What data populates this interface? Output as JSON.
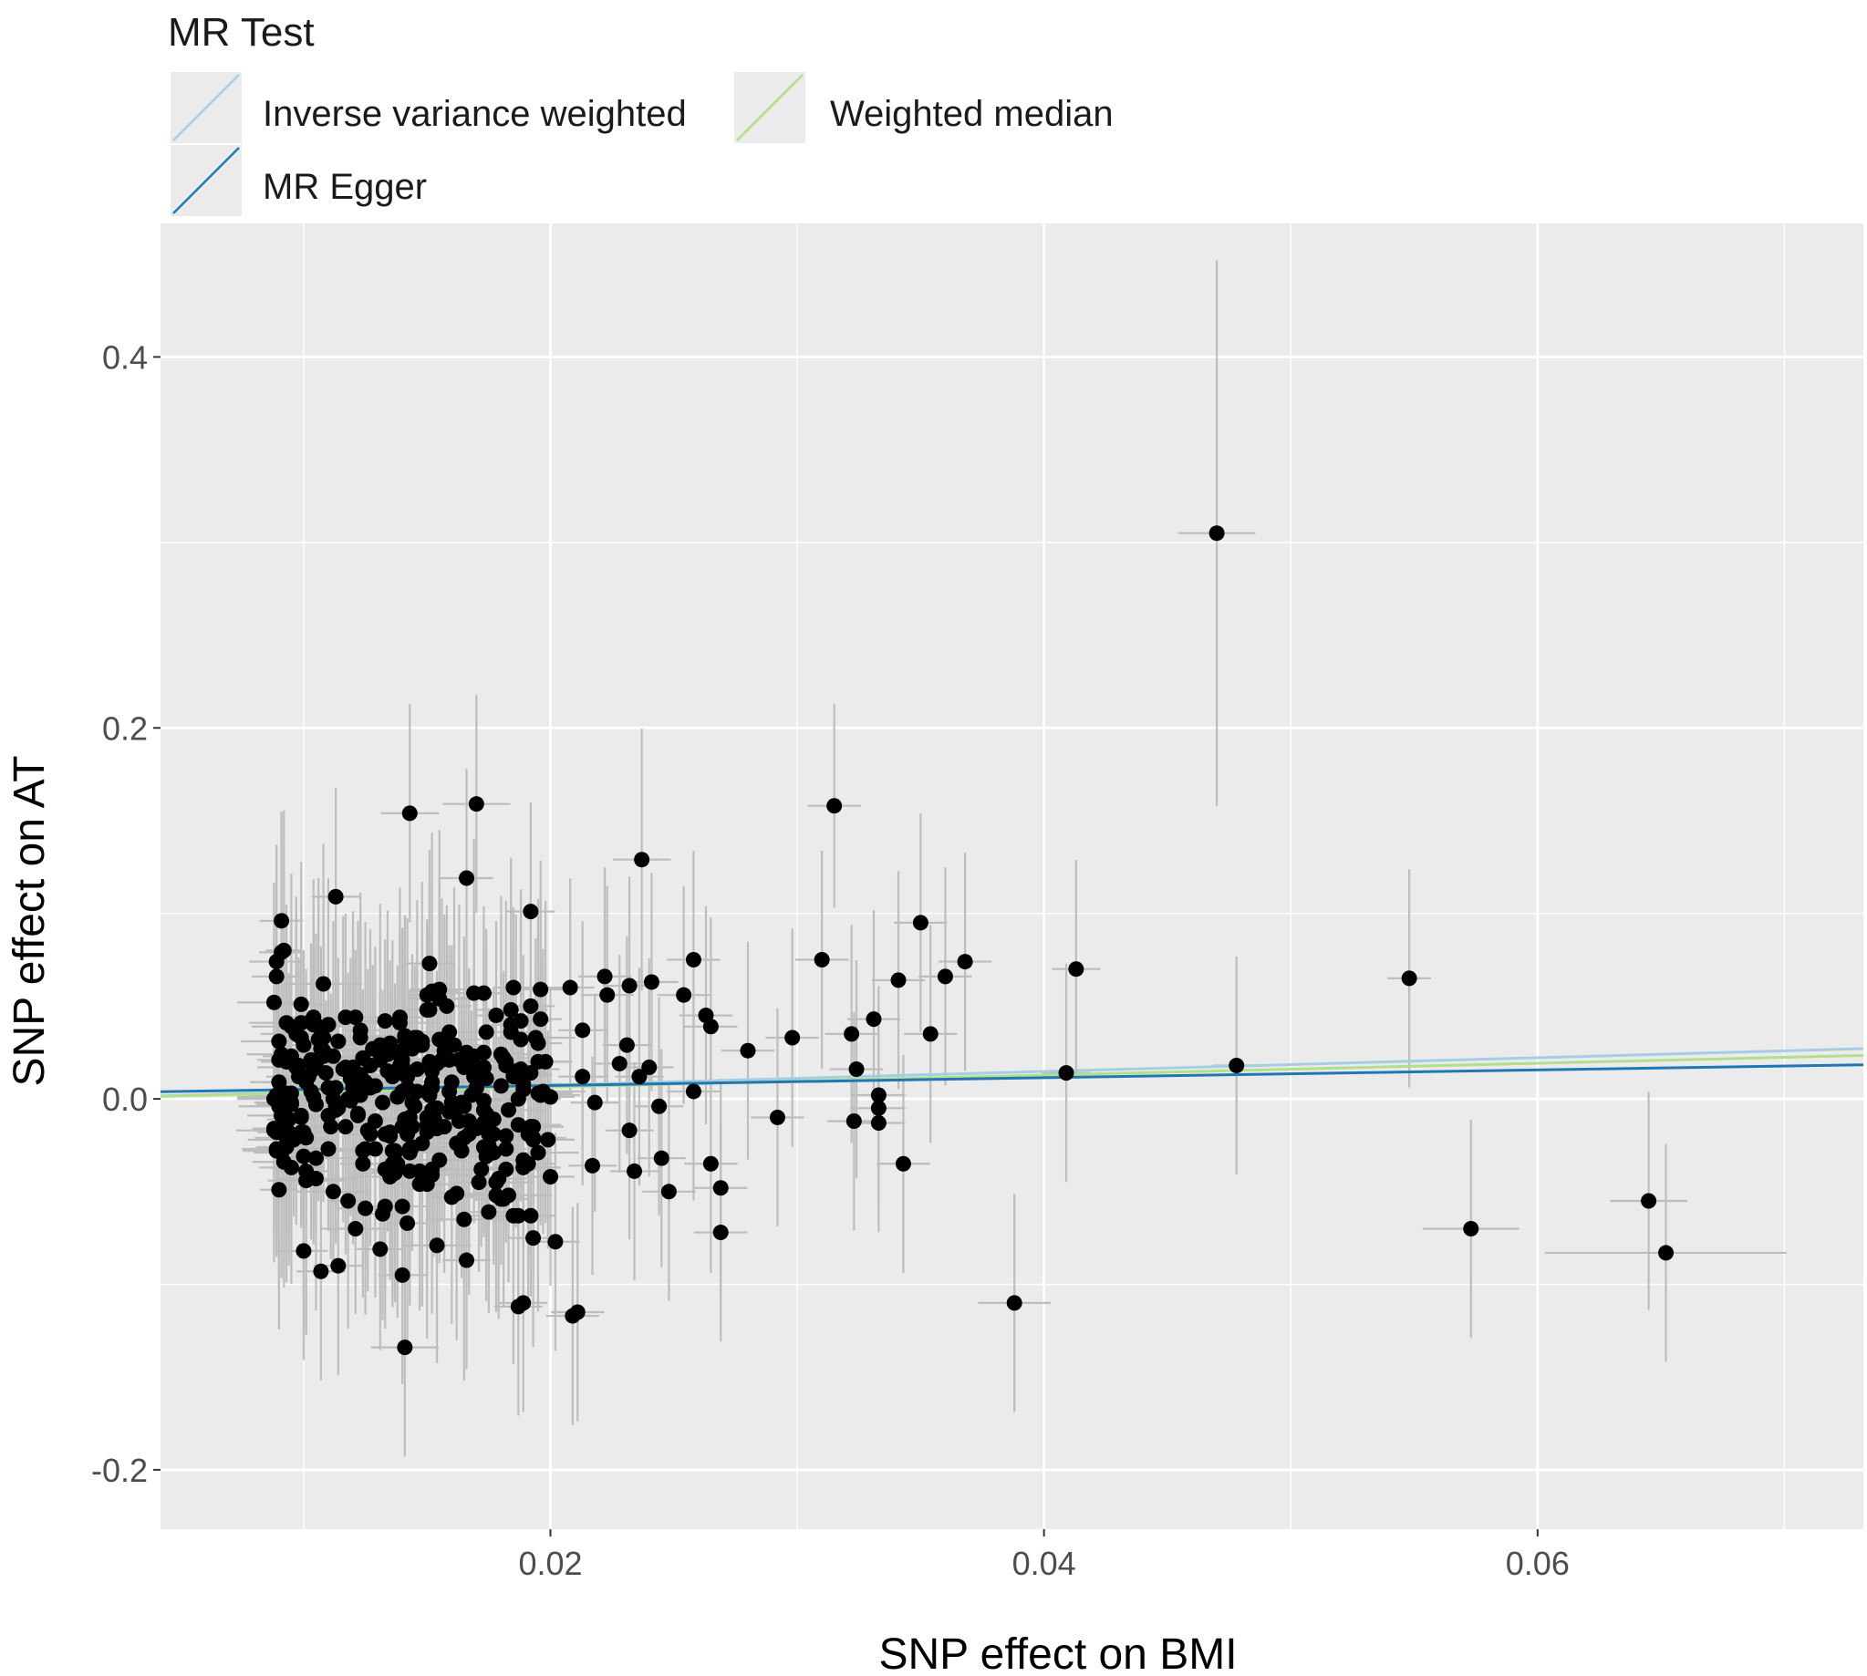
{
  "chart_data": {
    "type": "scatter",
    "legend": {
      "title": "MR Test",
      "placement": "top",
      "items": [
        {
          "label": "Inverse variance weighted",
          "color": "#a6cee3"
        },
        {
          "label": "Weighted median",
          "color": "#b2df8a"
        },
        {
          "label": "MR Egger",
          "color": "#1f78b4"
        }
      ]
    },
    "xlabel": "SNP effect on BMI",
    "ylabel": "SNP effect on AT",
    "xlim": [
      0.0042,
      0.0732
    ],
    "ylim": [
      -0.232,
      0.472
    ],
    "x_ticks": [
      0.02,
      0.04,
      0.06
    ],
    "x_tick_labels": [
      "0.02",
      "0.04",
      "0.06"
    ],
    "y_ticks": [
      0.4,
      0.2,
      0.0,
      -0.2
    ],
    "y_tick_labels": [
      "0.4",
      "0.2",
      "0.0",
      "-0.2"
    ],
    "grid": true,
    "panel_color": "#ebebeb",
    "point_color": "#000000",
    "errorbar_color": "#bdbdbd",
    "lines": [
      {
        "name": "Inverse variance weighted",
        "slope": 0.37,
        "intercept": 0
      },
      {
        "name": "Weighted median",
        "slope": 0.32,
        "intercept": 0
      },
      {
        "name": "MR Egger",
        "slope": 0.21,
        "intercept": 0.003
      }
    ],
    "points": [
      {
        "x": 0.047,
        "y": 0.305,
        "xse": 0.0016,
        "yse": 0.075
      },
      {
        "x": 0.0315,
        "y": 0.158,
        "xse": 0.0011,
        "yse": 0.028
      },
      {
        "x": 0.017,
        "y": 0.159,
        "xse": 0.0014,
        "yse": 0.03
      },
      {
        "x": 0.0143,
        "y": 0.154,
        "xse": 0.0012,
        "yse": 0.03
      },
      {
        "x": 0.0237,
        "y": 0.129,
        "xse": 0.0012,
        "yse": 0.036
      },
      {
        "x": 0.0166,
        "y": 0.119,
        "xse": 0.0011,
        "yse": 0.03
      },
      {
        "x": 0.0113,
        "y": 0.109,
        "xse": 0.001,
        "yse": 0.03
      },
      {
        "x": 0.035,
        "y": 0.095,
        "xse": 0.0011,
        "yse": 0.03
      },
      {
        "x": 0.0192,
        "y": 0.101,
        "xse": 0.001,
        "yse": 0.03
      },
      {
        "x": 0.0091,
        "y": 0.096,
        "xse": 0.0009,
        "yse": 0.03
      },
      {
        "x": 0.0368,
        "y": 0.074,
        "xse": 0.0011,
        "yse": 0.03
      },
      {
        "x": 0.031,
        "y": 0.075,
        "xse": 0.0011,
        "yse": 0.03
      },
      {
        "x": 0.0413,
        "y": 0.07,
        "xse": 0.001,
        "yse": 0.03
      },
      {
        "x": 0.0548,
        "y": 0.065,
        "xse": 0.0009,
        "yse": 0.03
      },
      {
        "x": 0.036,
        "y": 0.066,
        "xse": 0.0011,
        "yse": 0.03
      },
      {
        "x": 0.0341,
        "y": 0.064,
        "xse": 0.0011,
        "yse": 0.03
      },
      {
        "x": 0.0241,
        "y": 0.063,
        "xse": 0.0011,
        "yse": 0.03
      },
      {
        "x": 0.0258,
        "y": 0.075,
        "xse": 0.0011,
        "yse": 0.03
      },
      {
        "x": 0.0222,
        "y": 0.066,
        "xse": 0.0011,
        "yse": 0.03
      },
      {
        "x": 0.0232,
        "y": 0.061,
        "xse": 0.0011,
        "yse": 0.03
      },
      {
        "x": 0.0254,
        "y": 0.056,
        "xse": 0.0011,
        "yse": 0.03
      },
      {
        "x": 0.0223,
        "y": 0.056,
        "xse": 0.0011,
        "yse": 0.03
      },
      {
        "x": 0.0263,
        "y": 0.045,
        "xse": 0.0011,
        "yse": 0.03
      },
      {
        "x": 0.0331,
        "y": 0.043,
        "xse": 0.0011,
        "yse": 0.03
      },
      {
        "x": 0.0265,
        "y": 0.039,
        "xse": 0.0011,
        "yse": 0.03
      },
      {
        "x": 0.0354,
        "y": 0.035,
        "xse": 0.0011,
        "yse": 0.03
      },
      {
        "x": 0.0322,
        "y": 0.035,
        "xse": 0.0011,
        "yse": 0.03
      },
      {
        "x": 0.0298,
        "y": 0.033,
        "xse": 0.0011,
        "yse": 0.03
      },
      {
        "x": 0.028,
        "y": 0.026,
        "xse": 0.0011,
        "yse": 0.03
      },
      {
        "x": 0.0478,
        "y": 0.018,
        "xse": 0.001,
        "yse": 0.03
      },
      {
        "x": 0.0324,
        "y": 0.016,
        "xse": 0.0011,
        "yse": 0.03
      },
      {
        "x": 0.0409,
        "y": 0.014,
        "xse": 0.001,
        "yse": 0.03
      },
      {
        "x": 0.0258,
        "y": 0.004,
        "xse": 0.0011,
        "yse": 0.03
      },
      {
        "x": 0.0333,
        "y": 0.002,
        "xse": 0.0011,
        "yse": 0.03
      },
      {
        "x": 0.0333,
        "y": -0.005,
        "xse": 0.0011,
        "yse": 0.03
      },
      {
        "x": 0.0292,
        "y": -0.01,
        "xse": 0.0011,
        "yse": 0.03
      },
      {
        "x": 0.0323,
        "y": -0.012,
        "xse": 0.0011,
        "yse": 0.03
      },
      {
        "x": 0.0333,
        "y": -0.013,
        "xse": 0.0011,
        "yse": 0.03
      },
      {
        "x": 0.0343,
        "y": -0.035,
        "xse": 0.0011,
        "yse": 0.03
      },
      {
        "x": 0.0265,
        "y": -0.035,
        "xse": 0.0011,
        "yse": 0.03
      },
      {
        "x": 0.0269,
        "y": -0.048,
        "xse": 0.0011,
        "yse": 0.03
      },
      {
        "x": 0.0248,
        "y": -0.05,
        "xse": 0.0011,
        "yse": 0.03
      },
      {
        "x": 0.0269,
        "y": -0.072,
        "xse": 0.0011,
        "yse": 0.03
      },
      {
        "x": 0.0573,
        "y": -0.07,
        "xse": 0.002,
        "yse": 0.03
      },
      {
        "x": 0.0645,
        "y": -0.055,
        "xse": 0.0016,
        "yse": 0.03
      },
      {
        "x": 0.0652,
        "y": -0.083,
        "xse": 0.005,
        "yse": 0.03
      },
      {
        "x": 0.0388,
        "y": -0.11,
        "xse": 0.0015,
        "yse": 0.03
      },
      {
        "x": 0.0141,
        "y": -0.134,
        "xse": 0.0014,
        "yse": 0.03
      },
      {
        "x": 0.0209,
        "y": -0.117,
        "xse": 0.0011,
        "yse": 0.03
      },
      {
        "x": 0.0211,
        "y": -0.115,
        "xse": 0.0011,
        "yse": 0.03
      },
      {
        "x": 0.0189,
        "y": -0.11,
        "xse": 0.001,
        "yse": 0.03
      },
      {
        "x": 0.0187,
        "y": -0.112,
        "xse": 0.001,
        "yse": 0.03
      },
      {
        "x": 0.0107,
        "y": -0.093,
        "xse": 0.001,
        "yse": 0.03
      },
      {
        "x": 0.0114,
        "y": -0.09,
        "xse": 0.001,
        "yse": 0.03
      },
      {
        "x": 0.014,
        "y": -0.095,
        "xse": 0.001,
        "yse": 0.03
      },
      {
        "x": 0.0202,
        "y": -0.077,
        "xse": 0.001,
        "yse": 0.03
      },
      {
        "x": 0.0193,
        "y": -0.075,
        "xse": 0.001,
        "yse": 0.03
      },
      {
        "x": 0.01,
        "y": -0.082,
        "xse": 0.001,
        "yse": 0.03
      },
      {
        "x": 0.0166,
        "y": -0.087,
        "xse": 0.001,
        "yse": 0.03
      },
      {
        "x": 0.0213,
        "y": 0.037,
        "xse": 0.001,
        "yse": 0.03
      },
      {
        "x": 0.0208,
        "y": 0.06,
        "xse": 0.001,
        "yse": 0.03
      },
      {
        "x": 0.0213,
        "y": 0.012,
        "xse": 0.001,
        "yse": 0.03
      },
      {
        "x": 0.0231,
        "y": 0.029,
        "xse": 0.001,
        "yse": 0.03
      },
      {
        "x": 0.0228,
        "y": 0.019,
        "xse": 0.001,
        "yse": 0.03
      },
      {
        "x": 0.0236,
        "y": 0.012,
        "xse": 0.001,
        "yse": 0.03
      },
      {
        "x": 0.0244,
        "y": -0.004,
        "xse": 0.001,
        "yse": 0.03
      },
      {
        "x": 0.0232,
        "y": -0.017,
        "xse": 0.001,
        "yse": 0.03
      },
      {
        "x": 0.0245,
        "y": -0.032,
        "xse": 0.001,
        "yse": 0.03
      },
      {
        "x": 0.0217,
        "y": -0.036,
        "xse": 0.001,
        "yse": 0.03
      },
      {
        "x": 0.0234,
        "y": -0.039,
        "xse": 0.001,
        "yse": 0.03
      },
      {
        "x": 0.02,
        "y": -0.042,
        "xse": 0.001,
        "yse": 0.03
      },
      {
        "x": 0.0199,
        "y": -0.022,
        "xse": 0.001,
        "yse": 0.03
      },
      {
        "x": 0.0218,
        "y": -0.002,
        "xse": 0.001,
        "yse": 0.03
      },
      {
        "x": 0.024,
        "y": 0.017,
        "xse": 0.001,
        "yse": 0.03
      },
      {
        "x": 0.02,
        "y": 0.001,
        "xse": 0.001,
        "yse": 0.03
      },
      {
        "x": 0.0192,
        "y": 0.05,
        "xse": 0.001,
        "yse": 0.03
      },
      {
        "x": 0.0195,
        "y": 0.03,
        "xse": 0.001,
        "yse": 0.03
      }
    ],
    "cluster": {
      "x_range": [
        0.0088,
        0.02
      ],
      "y_mean": 0.0,
      "y_sd": 0.038,
      "count": 330,
      "xse": 0.0012,
      "yse": 0.03
    }
  }
}
